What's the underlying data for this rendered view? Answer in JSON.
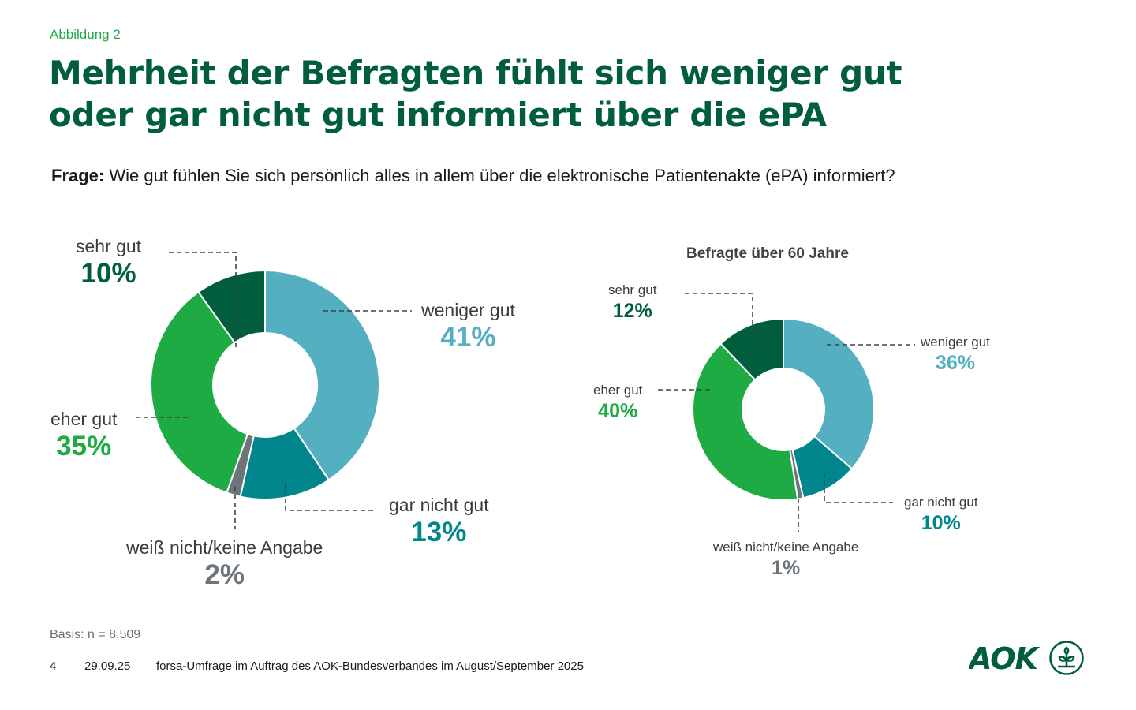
{
  "header": {
    "figure_label": "Abbildung 2",
    "title_line1": "Mehrheit der Befragten fühlt sich weniger gut",
    "title_line2": "oder gar nicht gut informiert über die ePA",
    "question_label": "Frage:",
    "question_text": "Wie gut fühlen Sie sich persönlich alles in allem über die elektronische Patientenakte (ePA) informiert?"
  },
  "colors": {
    "sehr_gut": "#005e3c",
    "eher_gut": "#1eab44",
    "weniger_gut": "#54b0c0",
    "gar_nicht_gut": "#00868c",
    "weiss_nicht": "#6d757b",
    "brand": "#005e3c"
  },
  "chart_data": [
    {
      "type": "pie",
      "variant": "donut",
      "title": "",
      "categories": [
        "weniger gut",
        "gar nicht gut",
        "weiß nicht/keine Angabe",
        "eher gut",
        "sehr gut"
      ],
      "values": [
        41,
        13,
        2,
        35,
        10
      ],
      "labels": [
        "41%",
        "13%",
        "2%",
        "35%",
        "10%"
      ],
      "unit": "%",
      "start": "top",
      "direction": "clockwise"
    },
    {
      "type": "pie",
      "variant": "donut",
      "title": "Befragte über 60 Jahre",
      "categories": [
        "weniger gut",
        "gar nicht gut",
        "weiß nicht/keine Angabe",
        "eher gut",
        "sehr gut"
      ],
      "values": [
        36,
        10,
        1,
        40,
        12
      ],
      "labels": [
        "36%",
        "10%",
        "1%",
        "40%",
        "12%"
      ],
      "unit": "%",
      "start": "top",
      "direction": "clockwise"
    }
  ],
  "footer": {
    "basis": "Basis: n = 8.509",
    "page_number": "4",
    "date": "29.09.25",
    "source": "forsa-Umfrage im Auftrag des AOK-Bundesverbandes im August/September 2025",
    "logo_text": "AOK"
  }
}
